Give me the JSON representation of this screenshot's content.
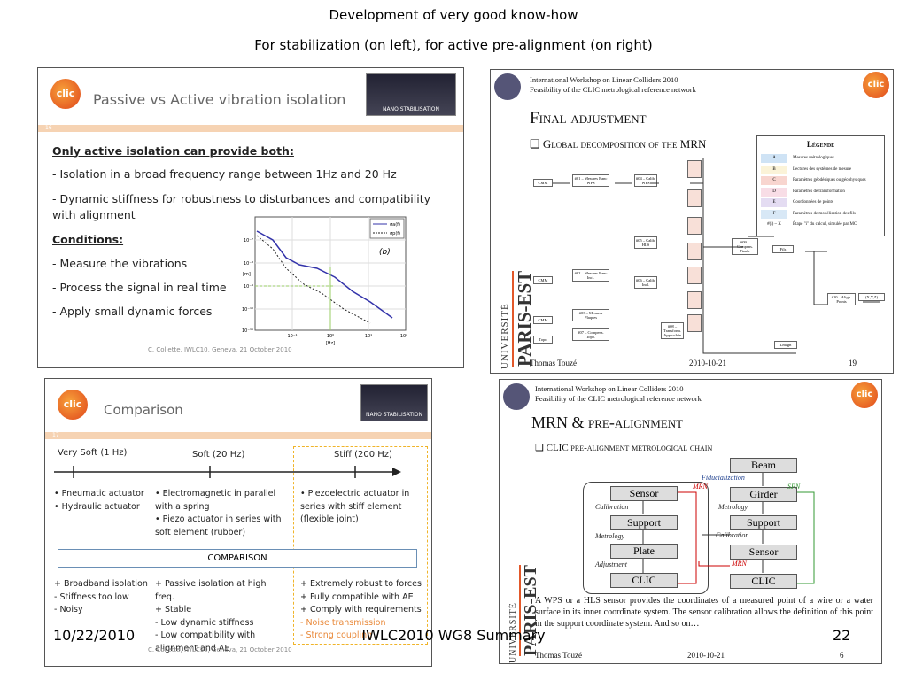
{
  "title": "Development of very good know-how",
  "subtitle": "For stabilization (on left), for active pre-alignment (on right)",
  "top_left": {
    "logo": "clic",
    "title": "Passive vs Active vibration isolation",
    "badge": "NANO STABILISATION",
    "number": "16",
    "heading": "Only active isolation can provide both:",
    "bullets": [
      "- Isolation in a broad frequency range between 1Hz and 20 Hz",
      "- Dynamic stiffness for robustness to disturbances and compatibility",
      "with alignment"
    ],
    "conditions": "Conditions:",
    "conditions_items": [
      "- Measure the vibrations",
      "- Process the signal in real time",
      "- Apply small dynamic forces"
    ],
    "plot": {
      "yticks": [
        "10⁻⁷",
        "10⁻⁸",
        "10⁻⁹",
        "10⁻¹⁰",
        "10⁻¹¹"
      ],
      "xticks": [
        "10⁻¹",
        "10⁰",
        "10¹",
        "10²"
      ],
      "xlabel": "[Hz]",
      "ylabel": "[m]",
      "legend": [
        "σa(f)",
        "σp(f)"
      ],
      "tag": "(b)"
    },
    "footer": "C. Collette, IWLC10, Geneva, 21 October 2010"
  },
  "top_right": {
    "header1": "International Workshop on Linear Colliders 2010",
    "header2": "Feasibility of the CLIC metrological reference network",
    "logo": "clic",
    "title": "Final adjustment",
    "subheading": "Global decomposition of the MRN",
    "legend_title": "Légende",
    "legend": [
      {
        "key": "A",
        "text": "Mesures métrologiques"
      },
      {
        "key": "B",
        "text": "Lectures des systèmes de mesure"
      },
      {
        "key": "C",
        "text": "Paramètres géodésiques ou géophysiques"
      },
      {
        "key": "D",
        "text": "Paramètres de transformation"
      },
      {
        "key": "E",
        "text": "Coordonnées de points"
      },
      {
        "key": "F",
        "text": "Paramètres de modélisation des fils"
      },
      {
        "key": "#(i) – X",
        "text": "Étape \"i\" du calcul, simulée par MC"
      }
    ],
    "nodes": [
      "CMM",
      "CMM",
      "CMM",
      "Topo",
      "#01 – Mesures Banc WPS",
      "#02 – Mesures Banc Incl.",
      "#03 – Mesures Plaques",
      "#07 – Compens. Topo.",
      "#04 – Calib. WPS",
      "#05 – Calib. HLS",
      "#06 – Calib. Incl.",
      "#08 – Transform. Approchée",
      "#09 – Compens. Finale",
      "#10 – Align. Points",
      "Fils",
      "(X,Y,Z)",
      "Lmagn"
    ],
    "university": "UNIVERSITÉ",
    "university2": "PARIS-EST",
    "author": "Thomas Touzé",
    "date": "2010-10-21",
    "page": "19"
  },
  "bottom_left": {
    "logo": "clic",
    "title": "Comparison",
    "badge": "NANO STABILISATION",
    "number": "17",
    "scale": [
      "Very Soft (1 Hz)",
      "Soft (20 Hz)",
      "Stiff (200 Hz)"
    ],
    "col1": [
      "• Pneumatic actuator",
      "• Hydraulic actuator"
    ],
    "col2": [
      "• Electromagnetic in parallel",
      "with a spring",
      "• Piezo actuator in series with",
      "soft element (rubber)"
    ],
    "col3": [
      "• Piezoelectric actuator in",
      "series with stiff element",
      "(flexible joint)"
    ],
    "comparison": "COMPARISON",
    "res1": [
      "+ Broadband isolation",
      "- Stiffness too low",
      "- Noisy"
    ],
    "res2": [
      "+ Passive isolation at high",
      "freq.",
      "+ Stable",
      "- Low dynamic stiffness",
      "- Low compatibility with",
      "alignment and AE"
    ],
    "res3": [
      "+ Extremely robust to forces",
      "+ Fully compatible with AE",
      "+ Comply with requirements"
    ],
    "res3_neg": [
      "- Noise transmission",
      "- Strong coupling"
    ],
    "footer": "C. Collette, IWLC10, Geneva, 21 October 2010"
  },
  "bottom_right": {
    "header1": "International Workshop on Linear Colliders 2010",
    "header2": "Feasibility of the CLIC metrological reference network",
    "logo": "clic",
    "title": "MRN & pre-alignment",
    "subheading": "CLIC pre-alignment metrological chain",
    "left_chain": [
      "Sensor",
      "Support",
      "Plate",
      "CLIC"
    ],
    "left_links": [
      "Calibration",
      "Metrology",
      "Adjustment"
    ],
    "right_chain": [
      "Beam",
      "Girder",
      "Support",
      "Sensor",
      "CLIC"
    ],
    "right_links": [
      "Fiducialization",
      "Metrology",
      "Calibration"
    ],
    "mrn_top": "MRN",
    "mrn_bottom": "MRN",
    "spn": "SPN",
    "paragraph": "A WPS or a HLS sensor provides the coordinates of a measured point of a wire or a water surface in its inner coordinate system. The sensor calibration allows the definition of this point in the support coordinate system. And so on…",
    "university": "UNIVERSITÉ",
    "university2": "PARIS-EST",
    "author": "Thomas Touzé",
    "date": "2010-10-21",
    "page": "6"
  },
  "footer": {
    "date": "10/22/2010",
    "event": "IWLC2010 WG8 Summary",
    "page": "22"
  }
}
